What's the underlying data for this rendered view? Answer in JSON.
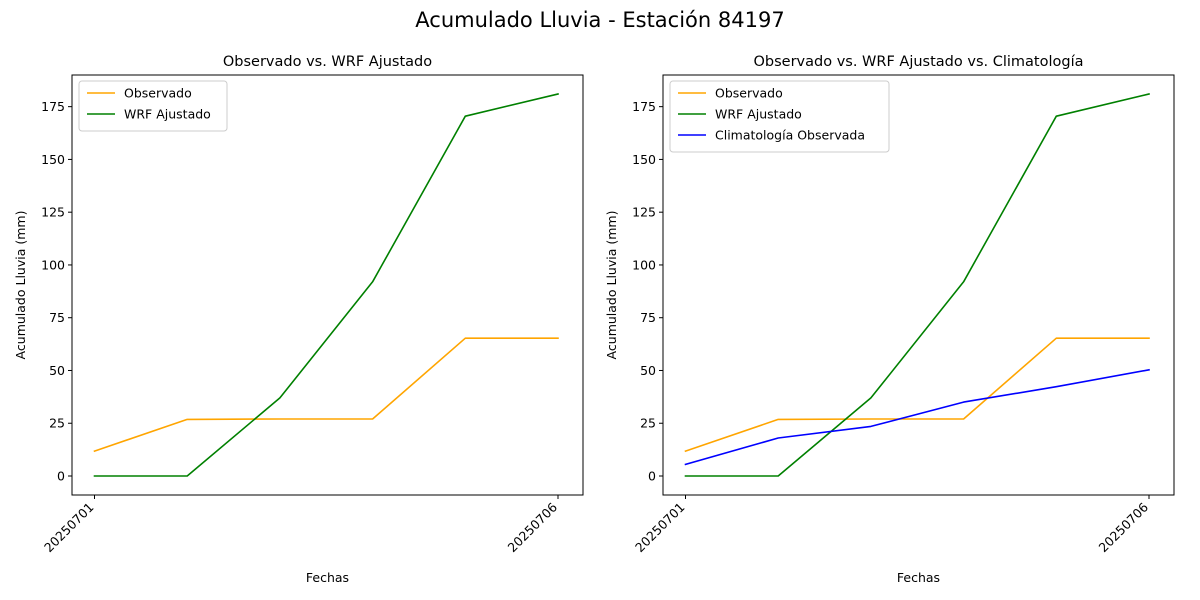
{
  "figure_title": "Acumulado Lluvia - Estación 84197",
  "chart_data": [
    {
      "type": "line",
      "title": "Observado vs. WRF Ajustado",
      "xlabel": "Fechas",
      "ylabel": "Acumulado Lluvia (mm)",
      "x": [
        "20250701",
        "20250702",
        "20250703",
        "20250704",
        "20250705",
        "20250706"
      ],
      "xticks": [
        "20250701",
        "20250706"
      ],
      "ylim": [
        -9,
        190
      ],
      "yticks": [
        0,
        25,
        50,
        75,
        100,
        125,
        150,
        175
      ],
      "legend_position": "upper-left",
      "grid": false,
      "series": [
        {
          "name": "Observado",
          "color": "#FFA500",
          "values": [
            11.8,
            26.8,
            27.0,
            27.0,
            65.3,
            65.3
          ]
        },
        {
          "name": "WRF Ajustado",
          "color": "#008000",
          "values": [
            0.0,
            0.0,
            37.0,
            92.0,
            170.5,
            181.0
          ]
        }
      ]
    },
    {
      "type": "line",
      "title": "Observado vs. WRF Ajustado vs. Climatología",
      "xlabel": "Fechas",
      "ylabel": "Acumulado Lluvia (mm)",
      "x": [
        "20250701",
        "20250702",
        "20250703",
        "20250704",
        "20250705",
        "20250706"
      ],
      "xticks": [
        "20250701",
        "20250706"
      ],
      "ylim": [
        -9,
        190
      ],
      "yticks": [
        0,
        25,
        50,
        75,
        100,
        125,
        150,
        175
      ],
      "legend_position": "upper-left",
      "grid": false,
      "series": [
        {
          "name": "Observado",
          "color": "#FFA500",
          "values": [
            11.8,
            26.8,
            27.0,
            27.0,
            65.3,
            65.3
          ]
        },
        {
          "name": "WRF Ajustado",
          "color": "#008000",
          "values": [
            0.0,
            0.0,
            37.0,
            92.0,
            170.5,
            181.0
          ]
        },
        {
          "name": "Climatología Observada",
          "color": "#0000FF",
          "values": [
            5.5,
            18.0,
            23.5,
            35.0,
            42.3,
            50.3
          ]
        }
      ]
    }
  ]
}
